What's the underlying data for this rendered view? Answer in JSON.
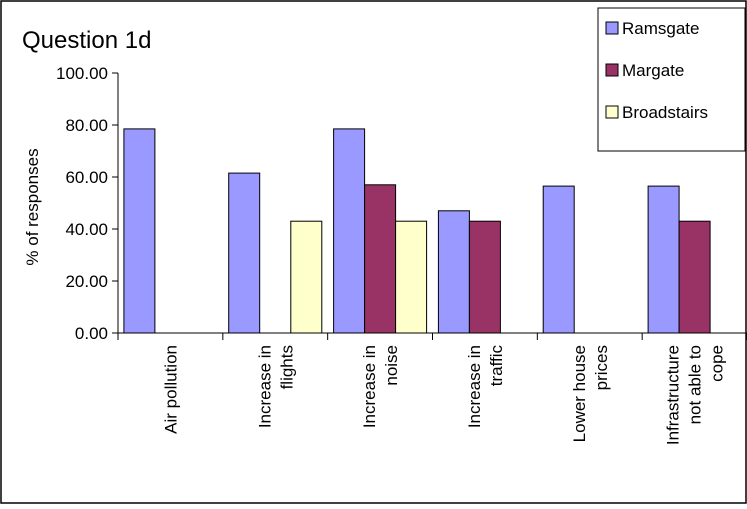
{
  "chart_data": {
    "type": "bar",
    "title": "Question 1d",
    "ylabel": "% of responses",
    "xlabel": "",
    "ylim": [
      0,
      100
    ],
    "yticks": [
      "0.00",
      "20.00",
      "40.00",
      "60.00",
      "80.00",
      "100.00"
    ],
    "categories": [
      [
        "Air pollution"
      ],
      [
        "Increase in",
        "flights"
      ],
      [
        "Increase in",
        "noise"
      ],
      [
        "Increase in",
        "traffic"
      ],
      [
        "Lower house",
        "prices"
      ],
      [
        "Infrastructure",
        "not able to",
        "cope"
      ]
    ],
    "series": [
      {
        "name": "Ramsgate",
        "color": "#9999ff",
        "values": [
          78.5,
          61.5,
          78.5,
          47.0,
          56.5,
          56.5
        ]
      },
      {
        "name": "Margate",
        "color": "#993366",
        "values": [
          0,
          0,
          57.0,
          43.0,
          0,
          43.0
        ]
      },
      {
        "name": "Broadstairs",
        "color": "#ffffcc",
        "values": [
          0,
          43.0,
          43.0,
          0,
          0,
          0
        ]
      }
    ],
    "legend_position": "top-right",
    "grid": false
  }
}
